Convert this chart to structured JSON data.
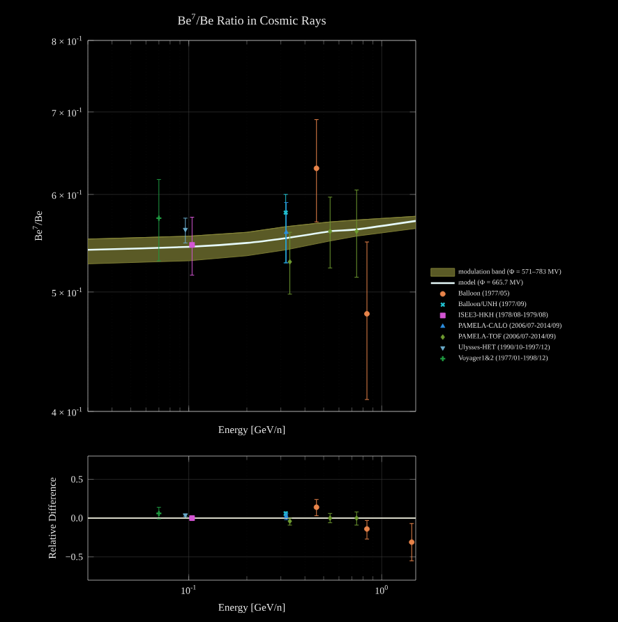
{
  "chart_data": [
    {
      "type": "scatter",
      "title": "Be$^{7}$/Be Ratio in Cosmic Rays",
      "xlabel": "Energy [GeV/n]",
      "ylabel": "Be$^{7}$/Be",
      "log": "xy",
      "grid": true,
      "legend": "right",
      "tick_labels": "y",
      "xlim": [
        0.03,
        1.5
      ],
      "ylim": [
        0.4,
        0.8
      ],
      "yticks": [
        {
          "value": 0.4,
          "label": "4 × 10$^{-1}$"
        },
        {
          "value": 0.5,
          "label": "5 × 10$^{-1}$"
        },
        {
          "value": 0.6,
          "label": "6 × 10$^{-1}$"
        },
        {
          "value": 0.7,
          "label": "7 × 10$^{-1}$"
        },
        {
          "value": 0.8,
          "label": "8 × 10$^{-1}$"
        }
      ],
      "series": [
        {
          "name": "modulation band (Φ = 571–783 MV)",
          "type": "line",
          "color": "#8a8a3a",
          "x": [
            0.03,
            0.1,
            0.2,
            0.32,
            0.54,
            0.74,
            1.5
          ],
          "values": [
            0.552,
            0.555,
            0.559,
            0.565,
            0.57,
            0.572,
            0.576
          ],
          "lower": [
            0.527,
            0.53,
            0.535,
            0.541,
            0.55,
            0.555,
            0.563
          ],
          "upper": [
            0.552,
            0.555,
            0.559,
            0.565,
            0.57,
            0.572,
            0.576
          ]
        },
        {
          "name": "model (Φ = 665.7 MV)",
          "type": "line",
          "color": "#e6fafa",
          "x": [
            0.03,
            0.1,
            0.2,
            0.32,
            0.54,
            0.74,
            1.5
          ],
          "values": [
            0.541,
            0.544,
            0.548,
            0.553,
            0.56,
            0.562,
            0.571
          ]
        },
        {
          "name": "Balloon (1977/05)",
          "color": "#e8844a",
          "marker": "circle",
          "x": [
            0.459,
            0.838
          ],
          "values": [
            0.63,
            0.48
          ],
          "errors": [
            [
              0.57,
              0.69
            ],
            [
              0.409,
              0.549
            ]
          ]
        },
        {
          "name": "Balloon/UNH (1977/09)",
          "color": "#20c0d0",
          "marker": "cross",
          "x": [
            0.318
          ],
          "values": [
            0.58
          ],
          "errors": [
            [
              0.528,
              0.6
            ]
          ]
        },
        {
          "name": "ISEE3-HKH (1978/08-1979/08)",
          "color": "#d455d4",
          "marker": "square",
          "x": [
            0.104
          ],
          "values": [
            0.546
          ],
          "errors": [
            [
              0.516,
              0.575
            ]
          ]
        },
        {
          "name": "PAMELA-CALO (2006/07-2014/09)",
          "color": "#2b8ee0",
          "marker": "triangle",
          "x": [
            0.32
          ],
          "values": [
            0.559
          ],
          "errors": [
            [
              0.528,
              0.591
            ]
          ]
        },
        {
          "name": "PAMELA-TOF (2006/07-2014/09)",
          "color": "#6e9a30",
          "marker": "diamond",
          "x": [
            0.334,
            0.54,
            0.741
          ],
          "values": [
            0.529,
            0.56,
            0.56
          ],
          "errors": [
            [
              0.498,
              0.559
            ],
            [
              0.523,
              0.597
            ],
            [
              0.514,
              0.605
            ]
          ]
        },
        {
          "name": "Ulysses-HET (1990/10-1997/12)",
          "color": "#6aaccc",
          "marker": "triangle_down",
          "x": [
            0.096
          ],
          "values": [
            0.562
          ],
          "errors": [
            [
              0.548,
              0.574
            ]
          ]
        },
        {
          "name": "Voyager1&2 (1977/01-1998/12)",
          "color": "#1e9a40",
          "marker": "plus",
          "x": [
            0.07
          ],
          "values": [
            0.574
          ],
          "errors": [
            [
              0.53,
              0.617
            ]
          ]
        }
      ]
    },
    {
      "type": "scatter",
      "xlabel": "Energy [GeV/n]",
      "ylabel": "Relative Difference",
      "log": "x",
      "grid": true,
      "xlim": [
        0.03,
        1.5
      ],
      "ylim": [
        -0.8,
        0.8
      ],
      "xticks": [
        {
          "value": 0.1,
          "label": "10$^{-1}$"
        },
        {
          "value": 1,
          "label": "10$^{0}$"
        }
      ],
      "yticks": [
        0.5,
        {
          "value": 0,
          "label": "0.0"
        },
        {
          "value": -0.5,
          "label": "−0.5"
        }
      ],
      "ref_lines": [
        {
          "axis": "y",
          "value": 0,
          "color": "#d8d8c8"
        }
      ],
      "series": [
        {
          "color": "#e8844a",
          "marker": "circle",
          "x": [
            0.459,
            0.838,
            1.43
          ],
          "values": [
            0.14,
            -0.14,
            -0.31
          ],
          "errors": [
            [
              0.03,
              0.24
            ],
            [
              -0.27,
              -0.03
            ],
            [
              -0.55,
              -0.07
            ]
          ]
        },
        {
          "color": "#20c0d0",
          "marker": "cross",
          "x": [
            0.318
          ],
          "values": [
            0.06
          ],
          "errors": [
            [
              0.03,
              0.08
            ]
          ]
        },
        {
          "color": "#d455d4",
          "marker": "square",
          "x": [
            0.104
          ],
          "values": [
            0.0
          ],
          "errors": [
            [
              -0.03,
              0.03
            ]
          ]
        },
        {
          "color": "#2b8ee0",
          "marker": "triangle",
          "x": [
            0.32
          ],
          "values": [
            0.02
          ],
          "errors": [
            [
              -0.02,
              0.06
            ]
          ]
        },
        {
          "color": "#6e9a30",
          "marker": "diamond",
          "x": [
            0.334,
            0.54,
            0.741
          ],
          "values": [
            -0.04,
            0.0,
            0.0
          ],
          "errors": [
            [
              -0.09,
              0.0
            ],
            [
              -0.06,
              0.06
            ],
            [
              -0.09,
              0.08
            ]
          ]
        },
        {
          "color": "#6aaccc",
          "marker": "triangle_down",
          "x": [
            0.096
          ],
          "values": [
            0.04
          ],
          "errors": [
            [
              0.02,
              0.05
            ]
          ]
        },
        {
          "color": "#1e9a40",
          "marker": "plus",
          "x": [
            0.07
          ],
          "values": [
            0.06
          ],
          "errors": [
            [
              -0.01,
              0.14
            ]
          ]
        }
      ]
    }
  ]
}
